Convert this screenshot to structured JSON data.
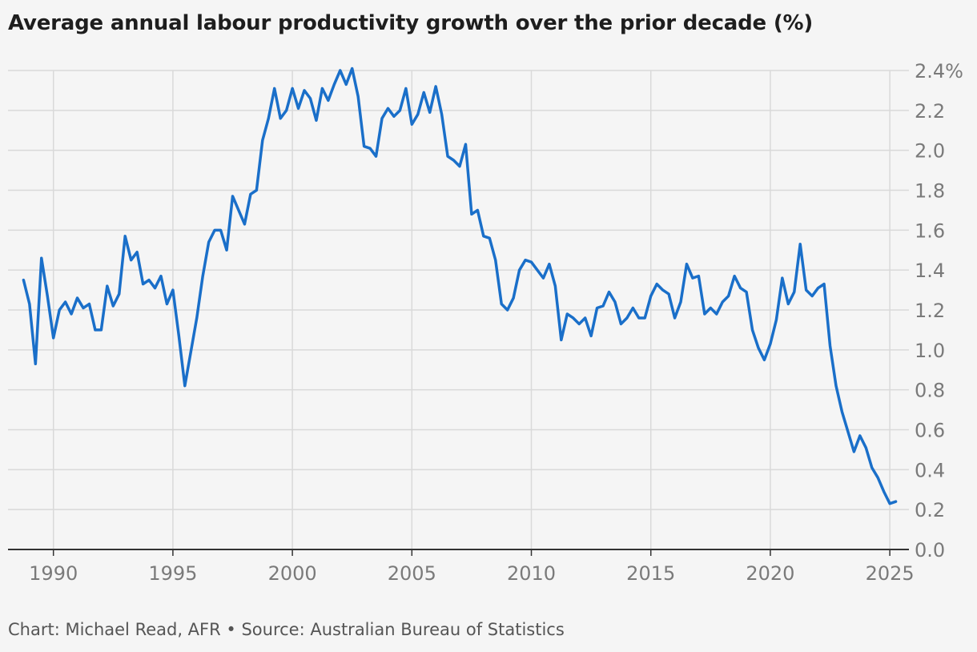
{
  "title": "Average annual labour productivity growth over the prior decade (%)",
  "source": "Chart: Michael Read, AFR • Source: Australian Bureau of Statistics",
  "colors": {
    "line": "#1a6fc9",
    "grid": "#d9d9d9",
    "axis": "#333333",
    "tick_text": "#7a7a7a",
    "background": "#f5f5f5"
  },
  "chart_data": {
    "type": "line",
    "title": "Average annual labour productivity growth over the prior decade (%)",
    "xlabel": "",
    "ylabel": "",
    "x_ticks": [
      1990,
      1995,
      2000,
      2005,
      2010,
      2015,
      2020,
      2025
    ],
    "y_ticks": [
      0.0,
      0.2,
      0.4,
      0.6,
      0.8,
      1.0,
      1.2,
      1.4,
      1.6,
      1.8,
      2.0,
      2.2,
      2.4
    ],
    "y_tick_labels": [
      "0.0",
      "0.2",
      "0.4",
      "0.6",
      "0.8",
      "1.0",
      "1.2",
      "1.4",
      "1.6",
      "1.8",
      "2.0",
      "2.2",
      "2.4%"
    ],
    "xlim": [
      1988.1,
      2025.8
    ],
    "ylim": [
      0.0,
      2.4
    ],
    "grid": true,
    "y_axis_position": "right",
    "series": [
      {
        "x": [
          1988.75,
          1989.0,
          1989.25,
          1989.5,
          1989.75,
          1990.0,
          1990.25,
          1990.5,
          1990.75,
          1991.0,
          1991.25,
          1991.5,
          1991.75,
          1992.0,
          1992.25,
          1992.5,
          1992.75,
          1993.0,
          1993.25,
          1993.5,
          1993.75,
          1994.0,
          1994.25,
          1994.5,
          1994.75,
          1995.0,
          1995.25,
          1995.5,
          1995.75,
          1996.0,
          1996.25,
          1996.5,
          1996.75,
          1997.0,
          1997.25,
          1997.5,
          1997.75,
          1998.0,
          1998.25,
          1998.5,
          1998.75,
          1999.0,
          1999.25,
          1999.5,
          1999.75,
          2000.0,
          2000.25,
          2000.5,
          2000.75,
          2001.0,
          2001.25,
          2001.5,
          2001.75,
          2002.0,
          2002.25,
          2002.5,
          2002.75,
          2003.0,
          2003.25,
          2003.5,
          2003.75,
          2004.0,
          2004.25,
          2004.5,
          2004.75,
          2005.0,
          2005.25,
          2005.5,
          2005.75,
          2006.0,
          2006.25,
          2006.5,
          2006.75,
          2007.0,
          2007.25,
          2007.5,
          2007.75,
          2008.0,
          2008.25,
          2008.5,
          2008.75,
          2009.0,
          2009.25,
          2009.5,
          2009.75,
          2010.0,
          2010.25,
          2010.5,
          2010.75,
          2011.0,
          2011.25,
          2011.5,
          2011.75,
          2012.0,
          2012.25,
          2012.5,
          2012.75,
          2013.0,
          2013.25,
          2013.5,
          2013.75,
          2014.0,
          2014.25,
          2014.5,
          2014.75,
          2015.0,
          2015.25,
          2015.5,
          2015.75,
          2016.0,
          2016.25,
          2016.5,
          2016.75,
          2017.0,
          2017.25,
          2017.5,
          2017.75,
          2018.0,
          2018.25,
          2018.5,
          2018.75,
          2019.0,
          2019.25,
          2019.5,
          2019.75,
          2020.0,
          2020.25,
          2020.5,
          2020.75,
          2021.0,
          2021.25,
          2021.5,
          2021.75,
          2022.0,
          2022.25,
          2022.5,
          2022.75,
          2023.0,
          2023.25,
          2023.5,
          2023.75,
          2024.0,
          2024.25,
          2024.5,
          2024.75,
          2025.0,
          2025.25
        ],
        "values": [
          1.35,
          1.23,
          0.93,
          1.46,
          1.27,
          1.06,
          1.2,
          1.24,
          1.18,
          1.26,
          1.21,
          1.23,
          1.1,
          1.1,
          1.32,
          1.22,
          1.28,
          1.57,
          1.45,
          1.49,
          1.33,
          1.35,
          1.31,
          1.37,
          1.23,
          1.3,
          1.07,
          0.82,
          0.99,
          1.16,
          1.37,
          1.54,
          1.6,
          1.6,
          1.5,
          1.77,
          1.7,
          1.63,
          1.78,
          1.8,
          2.05,
          2.16,
          2.31,
          2.16,
          2.2,
          2.31,
          2.21,
          2.3,
          2.26,
          2.15,
          2.31,
          2.25,
          2.33,
          2.4,
          2.33,
          2.41,
          2.27,
          2.02,
          2.01,
          1.97,
          2.16,
          2.21,
          2.17,
          2.2,
          2.31,
          2.13,
          2.18,
          2.29,
          2.19,
          2.32,
          2.18,
          1.97,
          1.95,
          1.92,
          2.03,
          1.68,
          1.7,
          1.57,
          1.56,
          1.45,
          1.23,
          1.2,
          1.26,
          1.4,
          1.45,
          1.44,
          1.4,
          1.36,
          1.43,
          1.32,
          1.05,
          1.18,
          1.16,
          1.13,
          1.16,
          1.07,
          1.21,
          1.22,
          1.29,
          1.24,
          1.13,
          1.16,
          1.21,
          1.16,
          1.16,
          1.27,
          1.33,
          1.3,
          1.28,
          1.16,
          1.24,
          1.43,
          1.36,
          1.37,
          1.18,
          1.21,
          1.18,
          1.24,
          1.27,
          1.37,
          1.31,
          1.29,
          1.1,
          1.01,
          0.95,
          1.03,
          1.15,
          1.36,
          1.23,
          1.29,
          1.53,
          1.3,
          1.27,
          1.31,
          1.33,
          1.02,
          0.82,
          0.69,
          0.59,
          0.49,
          0.57,
          0.51,
          0.41,
          0.36,
          0.29,
          0.23,
          0.24
        ]
      }
    ]
  }
}
